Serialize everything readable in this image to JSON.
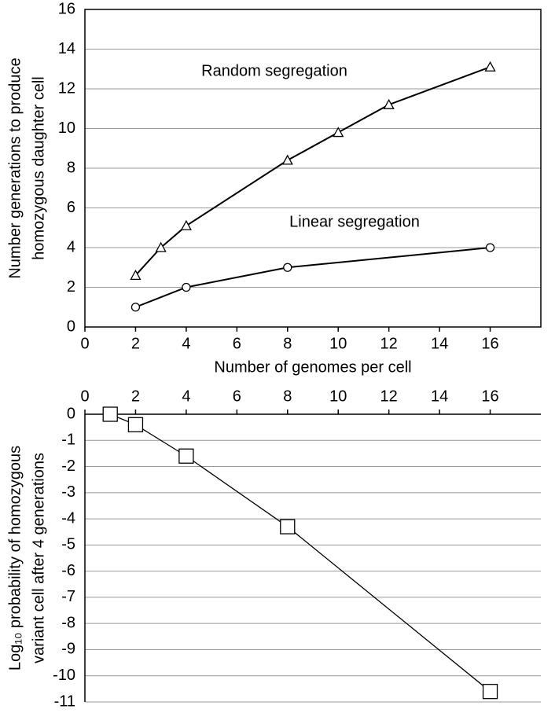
{
  "chart_data": [
    {
      "type": "scatter",
      "x_label": "Number of genomes per cell",
      "y_label": [
        "Number generations to produce",
        "homozygous daughter cell"
      ],
      "xlim": [
        0,
        18
      ],
      "xticks": [
        0,
        2,
        4,
        6,
        8,
        10,
        12,
        14,
        16
      ],
      "ylim": [
        0,
        16
      ],
      "yticks": [
        0,
        2,
        4,
        6,
        8,
        10,
        12,
        14,
        16
      ],
      "grid": true,
      "series": [
        {
          "name": "Random segregation",
          "color": "#000000",
          "marker": "triangle",
          "x": [
            2,
            3,
            4,
            8,
            10,
            12,
            16
          ],
          "values": [
            2.6,
            4.0,
            5.1,
            8.4,
            9.8,
            11.2,
            13.1
          ]
        },
        {
          "name": "Linear segregation",
          "color": "#000000",
          "marker": "circle",
          "x": [
            2,
            4,
            8,
            16
          ],
          "values": [
            1,
            2,
            3,
            4
          ]
        }
      ]
    },
    {
      "type": "scatter",
      "x_axis_position": "top",
      "y_label": [
        "Log₁₀ probability of homozygous",
        "variant cell after 4 generations"
      ],
      "xlim": [
        0,
        18
      ],
      "xticks": [
        0,
        2,
        4,
        6,
        8,
        10,
        12,
        14,
        16
      ],
      "ylim": [
        -11,
        0
      ],
      "yticks": [
        0,
        -1,
        -2,
        -3,
        -4,
        -5,
        -6,
        -7,
        -8,
        -9,
        -10,
        -11
      ],
      "grid": true,
      "series": [
        {
          "color": "#000000",
          "marker": "square",
          "x": [
            1,
            2,
            4,
            8,
            16
          ],
          "values": [
            0,
            -0.4,
            -1.6,
            -4.3,
            -10.6
          ]
        }
      ]
    }
  ]
}
